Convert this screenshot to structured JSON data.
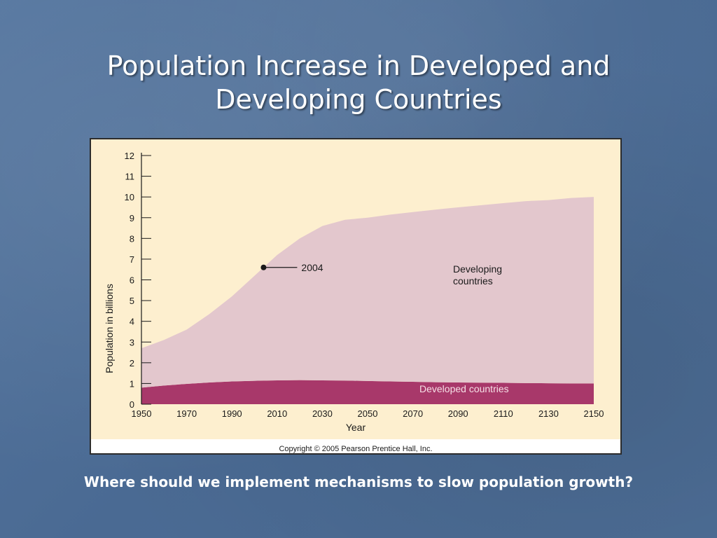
{
  "slide": {
    "title_line1": "Population Increase in Developed and",
    "title_line2": "Developing Countries",
    "caption": "Where should we implement mechanisms to slow population growth?"
  },
  "chart_data": {
    "type": "area",
    "title": "",
    "xlabel": "Year",
    "ylabel": "Population in billions",
    "xlim": [
      1950,
      2150
    ],
    "ylim": [
      0,
      12
    ],
    "x_ticks": [
      1950,
      1970,
      1990,
      2010,
      2030,
      2050,
      2070,
      2090,
      2110,
      2130,
      2150
    ],
    "y_ticks": [
      0,
      1,
      2,
      3,
      4,
      5,
      6,
      7,
      8,
      9,
      10,
      11,
      12
    ],
    "stacked": true,
    "x": [
      1950,
      1960,
      1970,
      1980,
      1990,
      2000,
      2004,
      2010,
      2020,
      2030,
      2040,
      2050,
      2060,
      2070,
      2080,
      2090,
      2100,
      2110,
      2120,
      2130,
      2140,
      2150
    ],
    "series": [
      {
        "name": "Developed countries",
        "color": "#a8386a",
        "values": [
          0.8,
          0.9,
          0.98,
          1.05,
          1.1,
          1.13,
          1.14,
          1.15,
          1.16,
          1.15,
          1.14,
          1.12,
          1.1,
          1.08,
          1.06,
          1.05,
          1.04,
          1.03,
          1.02,
          1.01,
          1.0,
          1.0
        ]
      },
      {
        "name": "Developing countries",
        "color": "#e3c7cd",
        "values": [
          1.9,
          2.2,
          2.62,
          3.3,
          4.1,
          5.07,
          5.46,
          6.05,
          6.84,
          7.45,
          7.76,
          7.88,
          8.05,
          8.19,
          8.33,
          8.45,
          8.56,
          8.67,
          8.78,
          8.84,
          8.95,
          9.0
        ]
      }
    ],
    "total_values": [
      2.7,
      3.1,
      3.6,
      4.35,
      5.2,
      6.2,
      6.6,
      7.2,
      8.0,
      8.6,
      8.9,
      9.0,
      9.15,
      9.27,
      9.39,
      9.5,
      9.6,
      9.7,
      9.8,
      9.85,
      9.95,
      10.0
    ],
    "annotations": [
      {
        "text": "2004",
        "x": 2004,
        "y": 6.6
      },
      {
        "text_line1": "Developing",
        "text_line2": "countries"
      },
      {
        "text": "Developed countries"
      }
    ],
    "credit": "Copyright © 2005 Pearson Prentice Hall, Inc.",
    "colors": {
      "plot_background": "#fdefcf",
      "frame_background": "#ffffff",
      "axis": "#1a1a1a"
    }
  }
}
